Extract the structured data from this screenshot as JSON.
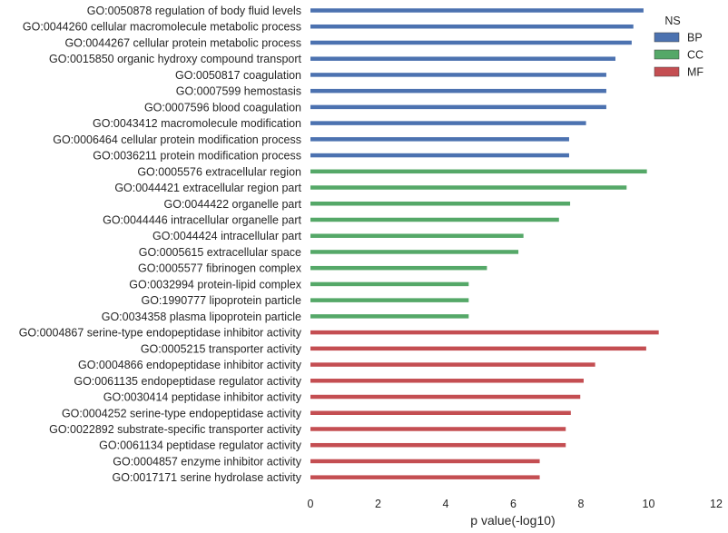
{
  "chart_data": {
    "type": "bar",
    "orientation": "horizontal",
    "xlabel": "p value(-log10)",
    "xlim": [
      0,
      12
    ],
    "xticks": [
      0,
      2,
      4,
      6,
      8,
      10,
      12
    ],
    "grid": false,
    "legend": {
      "title": "NS",
      "placement": "top-right",
      "entries": [
        {
          "name": "BP",
          "color": "#4c72b0"
        },
        {
          "name": "CC",
          "color": "#55a868"
        },
        {
          "name": "MF",
          "color": "#c44e52"
        }
      ]
    },
    "series": [
      {
        "name": "BP",
        "color": "#4c72b0",
        "categories": [
          "GO:0050878 regulation of body fluid levels",
          "GO:0044260 cellular macromolecule metabolic process",
          "GO:0044267 cellular protein metabolic process",
          "GO:0015850 organic hydroxy compound transport",
          "GO:0050817 coagulation",
          "GO:0007599 hemostasis",
          "GO:0007596 blood coagulation",
          "GO:0043412 macromolecule modification",
          "GO:0006464 cellular protein modification process",
          "GO:0036211 protein modification process"
        ],
        "values": [
          9.85,
          9.55,
          9.5,
          9.02,
          8.75,
          8.75,
          8.75,
          8.15,
          7.65,
          7.65
        ]
      },
      {
        "name": "CC",
        "color": "#55a868",
        "categories": [
          "GO:0005576 extracellular region",
          "GO:0044421 extracellular region part",
          "GO:0044422 organelle part",
          "GO:0044446 intracellular organelle part",
          "GO:0044424 intracellular part",
          "GO:0005615 extracellular space",
          "GO:0005577 fibrinogen complex",
          "GO:0032994 protein-lipid complex",
          "GO:1990777 lipoprotein particle",
          "GO:0034358 plasma lipoprotein particle"
        ],
        "values": [
          9.95,
          9.35,
          7.68,
          7.35,
          6.3,
          6.15,
          5.22,
          4.68,
          4.68,
          4.68
        ]
      },
      {
        "name": "MF",
        "color": "#c44e52",
        "categories": [
          "GO:0004867 serine-type endopeptidase inhibitor activity",
          "GO:0005215 transporter activity",
          "GO:0004866 endopeptidase inhibitor activity",
          "GO:0061135 endopeptidase regulator activity",
          "GO:0030414 peptidase inhibitor activity",
          "GO:0004252 serine-type endopeptidase activity",
          "GO:0022892 substrate-specific transporter activity",
          "GO:0061134 peptidase regulator activity",
          "GO:0004857 enzyme inhibitor activity",
          "GO:0017171 serine hydrolase activity"
        ],
        "values": [
          10.3,
          9.93,
          8.42,
          8.08,
          7.98,
          7.7,
          7.55,
          7.55,
          6.78,
          6.78
        ]
      }
    ]
  }
}
